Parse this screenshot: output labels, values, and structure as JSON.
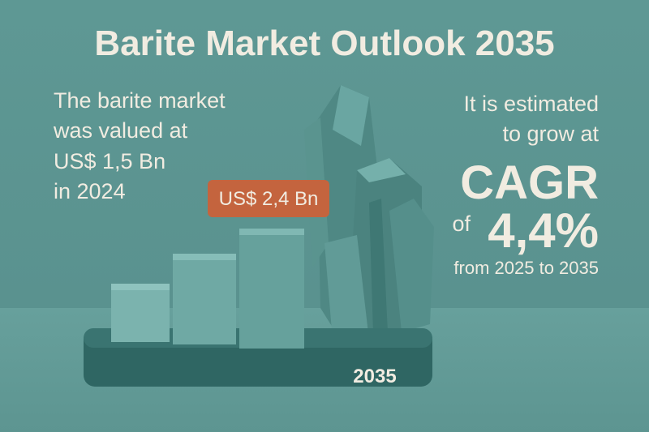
{
  "header": {
    "title": "Barite Market Outlook 2035"
  },
  "left_text": {
    "lines": [
      "The barite market",
      "was valued at",
      "US$ 1,5 Bn",
      "in 2024"
    ]
  },
  "badge": {
    "label": "US$ 2,4 Bn"
  },
  "right_text": {
    "lines": [
      "It is estimated",
      "to grow at"
    ],
    "headline": "CAGR",
    "prefix": "of",
    "rate": "4,4%",
    "period": "from 2025 to 2035"
  },
  "base": {
    "label": "2035"
  }
}
